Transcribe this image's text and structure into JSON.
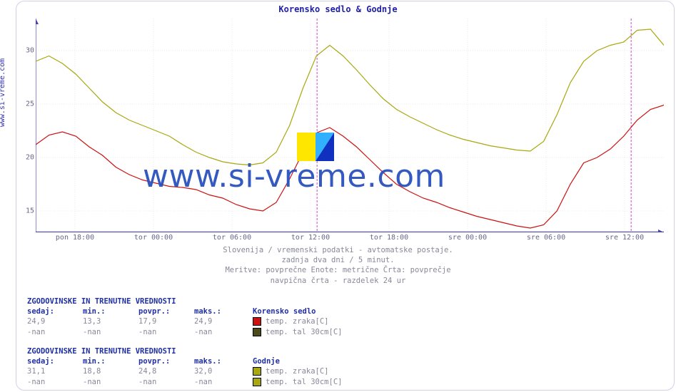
{
  "title": "Korensko sedlo & Godnje",
  "side_label": "www.si-vreme.com",
  "watermark_text": "www.si-vreme.com",
  "caption": {
    "line1": "Slovenija / vremenski podatki - avtomatske postaje.",
    "line2": "zadnja dva dni / 5 minut.",
    "line3": "Meritve: povprečne  Enote: metrične  Črta: povprečje",
    "line4": "navpična črta - razdelek 24 ur"
  },
  "chart": {
    "type": "line",
    "background_color": "#ffffff",
    "grid_color": "#e8e8e8",
    "axis_color": "#4444aa",
    "ylim": [
      13,
      33
    ],
    "yticks": [
      15,
      20,
      25,
      30
    ],
    "xlim": [
      0,
      48
    ],
    "xtick_positions": [
      3,
      9,
      15,
      21,
      27,
      33,
      39,
      45
    ],
    "xtick_labels": [
      "pon 18:00",
      "tor 00:00",
      "tor 06:00",
      "tor 12:00",
      "tor 18:00",
      "sre 00:00",
      "sre 06:00",
      "sre 12:00"
    ],
    "today_lines": [
      21.5,
      45.5
    ],
    "today_line_color": "#cc44cc",
    "line_width": 1.2,
    "series": [
      {
        "name": "korensko_air",
        "color": "#cc1111",
        "values": [
          21.2,
          22.1,
          22.4,
          22.0,
          21.0,
          20.2,
          19.1,
          18.4,
          17.9,
          17.6,
          17.3,
          17.2,
          17.0,
          16.5,
          16.2,
          15.6,
          15.2,
          15.0,
          15.8,
          18.0,
          20.5,
          22.3,
          22.8,
          22.0,
          21.0,
          19.8,
          18.6,
          17.5,
          16.8,
          16.2,
          15.8,
          15.3,
          14.9,
          14.5,
          14.2,
          13.9,
          13.6,
          13.4,
          13.7,
          15.0,
          17.5,
          19.5,
          20.0,
          20.8,
          22.0,
          23.5,
          24.5,
          24.9
        ]
      },
      {
        "name": "godnje_air",
        "color": "#a8a810",
        "values": [
          29.0,
          29.5,
          28.8,
          27.8,
          26.5,
          25.2,
          24.2,
          23.5,
          23.0,
          22.5,
          22.0,
          21.2,
          20.5,
          20.0,
          19.6,
          19.4,
          19.3,
          19.5,
          20.5,
          23.0,
          26.5,
          29.5,
          30.5,
          29.5,
          28.2,
          26.8,
          25.5,
          24.5,
          23.8,
          23.2,
          22.6,
          22.1,
          21.7,
          21.4,
          21.1,
          20.9,
          20.7,
          20.6,
          21.5,
          24.0,
          27.0,
          29.0,
          30.0,
          30.5,
          30.8,
          31.9,
          32.0,
          30.5
        ]
      }
    ]
  },
  "stats_header": "ZGODOVINSKE IN TRENUTNE VREDNOSTI",
  "col_labels": {
    "now": "sedaj",
    "min": "min.",
    "avg": "povpr.",
    "max": "maks."
  },
  "groups": [
    {
      "name": "Korensko sedlo",
      "rows": [
        {
          "now": "24,9",
          "min": "13,3",
          "avg": "17,9",
          "max": "24,9",
          "swatch": "#cc1111",
          "label": "temp. zraka[C]"
        },
        {
          "now": "-nan",
          "min": "-nan",
          "avg": "-nan",
          "max": "-nan",
          "swatch": "#4a4a1a",
          "label": "temp. tal 30cm[C]"
        }
      ]
    },
    {
      "name": "Godnje",
      "rows": [
        {
          "now": "31,1",
          "min": "18,8",
          "avg": "24,8",
          "max": "32,0",
          "swatch": "#a8a810",
          "label": "temp. zraka[C]"
        },
        {
          "now": "-nan",
          "min": "-nan",
          "avg": "-nan",
          "max": "-nan",
          "swatch": "#a8a810",
          "label": "temp. tal 30cm[C]"
        }
      ]
    }
  ],
  "watermark_logo": {
    "colors": [
      "#ffe600",
      "#30b0ff",
      "#1030c0"
    ]
  }
}
